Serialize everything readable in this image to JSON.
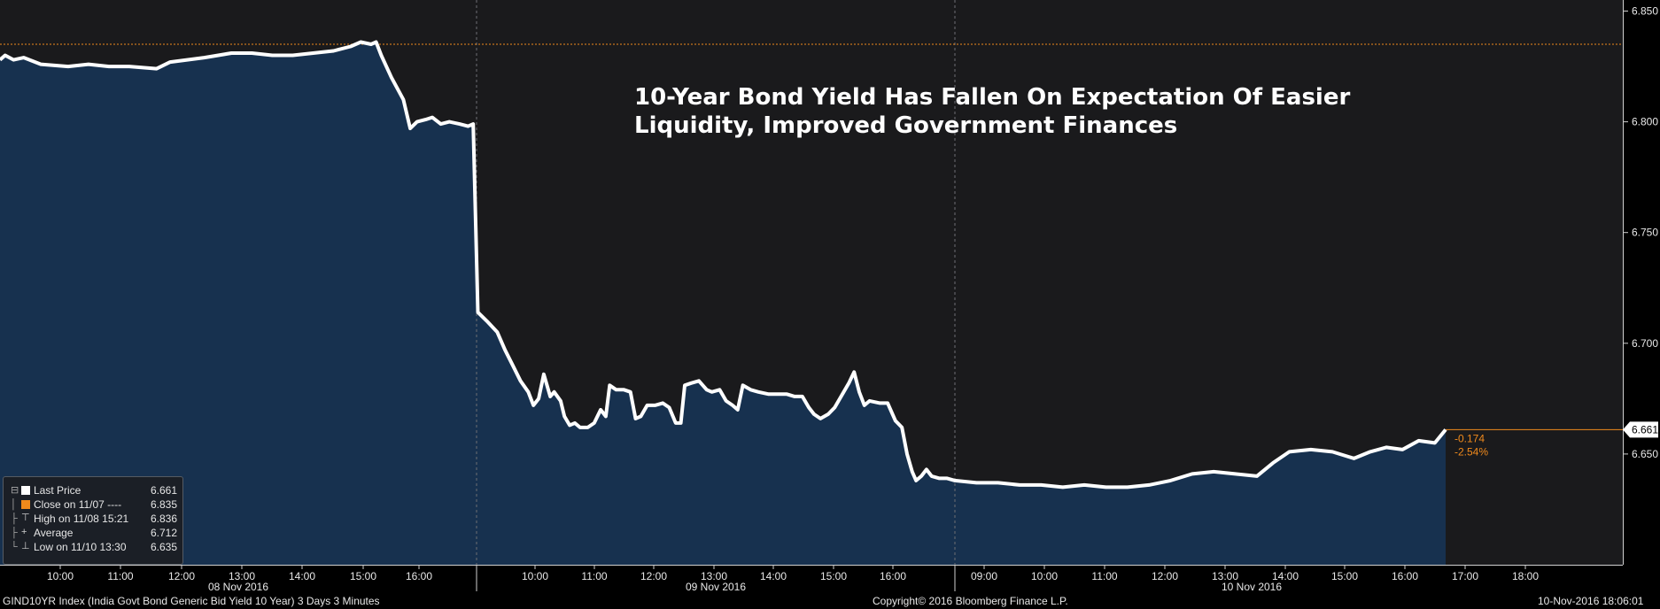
{
  "chart_data": {
    "type": "area",
    "title": "10-Year Bond Yield Has Fallen On Expectation Of Easier Liquidity, Improved Government Finances",
    "series_name": "GIND10YR Index (India Govt Bond Generic Bid Yield 10 Year) 3 Days 3 Minutes",
    "ylim": [
      6.6,
      6.855
    ],
    "yticks": [
      6.65,
      6.7,
      6.75,
      6.8,
      6.85
    ],
    "ytick_labels": [
      "6.650",
      "6.700",
      "6.750",
      "6.800",
      "6.850"
    ],
    "days": [
      {
        "date": "08 Nov 2016",
        "ticks": [
          "10:00",
          "11:00",
          "12:00",
          "13:00",
          "14:00",
          "15:00",
          "16:00"
        ]
      },
      {
        "date": "09 Nov 2016",
        "ticks": [
          "10:00",
          "11:00",
          "12:00",
          "13:00",
          "14:00",
          "15:00",
          "16:00"
        ]
      },
      {
        "date": "10 Nov 2016",
        "ticks": [
          "09:00",
          "10:00",
          "11:00",
          "12:00",
          "13:00",
          "14:00",
          "15:00",
          "16:00",
          "17:00",
          "18:00"
        ]
      }
    ],
    "x_domain": [
      0,
      32.5
    ],
    "points": [
      [
        0,
        6.828
      ],
      [
        0.15,
        6.83
      ],
      [
        0.4,
        6.828
      ],
      [
        0.7,
        6.829
      ],
      [
        1.2,
        6.826
      ],
      [
        2.0,
        6.825
      ],
      [
        2.6,
        6.826
      ],
      [
        3.2,
        6.825
      ],
      [
        3.8,
        6.825
      ],
      [
        4.6,
        6.824
      ],
      [
        5.0,
        6.827
      ],
      [
        5.5,
        6.828
      ],
      [
        6.0,
        6.829
      ],
      [
        6.8,
        6.831
      ],
      [
        7.4,
        6.831
      ],
      [
        8.0,
        6.83
      ],
      [
        8.6,
        6.83
      ],
      [
        9.2,
        6.831
      ],
      [
        9.8,
        6.832
      ],
      [
        10.3,
        6.834
      ],
      [
        10.6,
        6.836
      ],
      [
        10.9,
        6.835
      ],
      [
        11.05,
        6.836
      ],
      [
        11.2,
        6.83
      ],
      [
        11.5,
        6.82
      ],
      [
        11.85,
        6.81
      ],
      [
        12.05,
        6.797
      ],
      [
        12.25,
        6.8
      ],
      [
        12.5,
        6.801
      ],
      [
        12.7,
        6.802
      ],
      [
        12.95,
        6.799
      ],
      [
        13.2,
        6.8
      ],
      [
        13.5,
        6.799
      ],
      [
        13.75,
        6.798
      ],
      [
        13.9,
        6.799
      ],
      [
        14.05,
        6.714
      ],
      [
        14.4,
        6.71
      ],
      [
        14.8,
        6.705
      ],
      [
        15.1,
        6.697
      ],
      [
        15.4,
        6.69
      ],
      [
        15.7,
        6.683
      ],
      [
        16.0,
        6.678
      ],
      [
        16.2,
        6.672
      ],
      [
        16.4,
        6.675
      ],
      [
        16.6,
        6.686
      ],
      [
        16.85,
        6.676
      ],
      [
        17.0,
        6.678
      ],
      [
        17.25,
        6.674
      ],
      [
        17.4,
        6.667
      ],
      [
        17.6,
        6.663
      ],
      [
        17.8,
        6.664
      ],
      [
        18.0,
        6.662
      ],
      [
        18.3,
        6.662
      ],
      [
        18.55,
        6.664
      ],
      [
        18.8,
        6.67
      ],
      [
        19.0,
        6.667
      ],
      [
        19.15,
        6.681
      ],
      [
        19.4,
        6.679
      ],
      [
        19.7,
        6.679
      ],
      [
        19.95,
        6.678
      ],
      [
        20.15,
        6.666
      ],
      [
        20.35,
        6.667
      ],
      [
        20.6,
        6.672
      ],
      [
        20.9,
        6.672
      ],
      [
        21.2,
        6.673
      ],
      [
        21.45,
        6.671
      ],
      [
        21.7,
        6.664
      ],
      [
        21.9,
        6.664
      ],
      [
        22.05,
        6.681
      ],
      [
        22.3,
        6.682
      ],
      [
        22.6,
        6.683
      ],
      [
        22.9,
        6.679
      ],
      [
        23.1,
        6.678
      ],
      [
        23.4,
        6.679
      ],
      [
        23.65,
        6.674
      ],
      [
        23.9,
        6.672
      ],
      [
        24.1,
        6.67
      ],
      [
        24.3,
        6.681
      ],
      [
        24.6,
        6.679
      ],
      [
        24.9,
        6.678
      ],
      [
        25.3,
        6.677
      ],
      [
        25.7,
        6.677
      ],
      [
        26.0,
        6.677
      ],
      [
        26.3,
        6.676
      ],
      [
        26.6,
        6.676
      ],
      [
        26.85,
        6.671
      ],
      [
        27.05,
        6.668
      ],
      [
        27.3,
        6.666
      ],
      [
        27.6,
        6.668
      ],
      [
        27.85,
        6.671
      ],
      [
        28.4,
        6.682
      ],
      [
        28.6,
        6.687
      ],
      [
        28.8,
        6.678
      ],
      [
        29.0,
        6.672
      ],
      [
        29.2,
        6.674
      ],
      [
        29.6,
        6.673
      ],
      [
        29.9,
        6.673
      ],
      [
        30.2,
        6.665
      ],
      [
        30.45,
        6.662
      ],
      [
        30.65,
        6.65
      ],
      [
        30.85,
        6.642
      ],
      [
        31.0,
        6.638
      ],
      [
        31.2,
        6.64
      ],
      [
        31.4,
        6.643
      ],
      [
        31.6,
        6.64
      ],
      [
        31.9,
        6.639
      ],
      [
        32.2,
        6.639
      ],
      [
        32.5,
        6.638
      ]
    ],
    "points_day3": [
      [
        0,
        6.638
      ],
      [
        0.4,
        6.637
      ],
      [
        0.8,
        6.637
      ],
      [
        1.2,
        6.636
      ],
      [
        1.6,
        6.636
      ],
      [
        2.0,
        6.635
      ],
      [
        2.4,
        6.636
      ],
      [
        2.8,
        6.635
      ],
      [
        3.2,
        6.635
      ],
      [
        3.6,
        6.636
      ],
      [
        4.0,
        6.638
      ],
      [
        4.4,
        6.641
      ],
      [
        4.8,
        6.642
      ],
      [
        5.2,
        6.641
      ],
      [
        5.6,
        6.64
      ],
      [
        5.9,
        6.646
      ],
      [
        6.2,
        6.651
      ],
      [
        6.6,
        6.652
      ],
      [
        7.0,
        6.651
      ],
      [
        7.4,
        6.648
      ],
      [
        7.7,
        6.651
      ],
      [
        8.0,
        6.653
      ],
      [
        8.3,
        6.652
      ],
      [
        8.6,
        6.656
      ],
      [
        8.9,
        6.655
      ],
      [
        9.1,
        6.661
      ]
    ],
    "close_value": 6.835,
    "last_value": 6.661,
    "last_label": "6.661",
    "change_abs": "-0.174",
    "change_pct": "-2.54%",
    "colors": {
      "line": "#ffffff",
      "fill": "#17314f",
      "close_line": "#f08a1c",
      "background": "#000000",
      "plot_bg": "#1a1a1c"
    }
  },
  "legend": {
    "rows": [
      {
        "label": "Last Price",
        "value": "6.661",
        "symbol": "white-square"
      },
      {
        "label": "Close on 11/07 ----",
        "value": "6.835",
        "symbol": "orange-square"
      },
      {
        "label": "High on 11/08 15:21",
        "value": "6.836",
        "symbol": "high-marker"
      },
      {
        "label": "Average",
        "value": "6.712",
        "symbol": "average-marker"
      },
      {
        "label": "Low on 11/10 13:30",
        "value": "6.635",
        "symbol": "low-marker"
      }
    ]
  },
  "footer": {
    "left": "GIND10YR Index (India Govt Bond Generic Bid Yield 10 Year) 3 Days 3 Minutes",
    "center": "Copyright© 2016 Bloomberg Finance L.P.",
    "right": "10-Nov-2016 18:06:01"
  }
}
